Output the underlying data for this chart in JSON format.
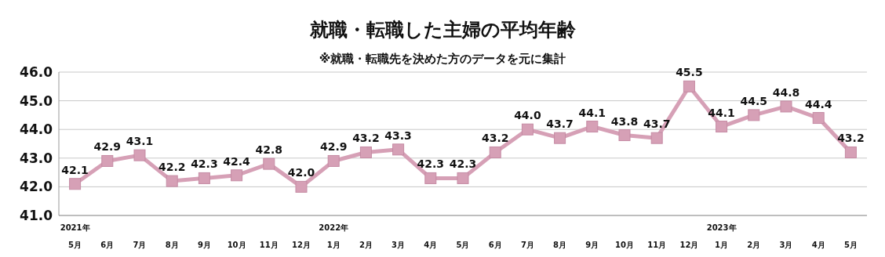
{
  "chart_data": {
    "type": "line",
    "title": "就職・転職した主婦の平均年齢",
    "subtitle": "※就職・転職先を決めた方のデータを元に集計",
    "categories": [
      "2021年\n5月",
      "6月",
      "7月",
      "8月",
      "9月",
      "10月",
      "11月",
      "12月",
      "2022年\n1月",
      "2月",
      "3月",
      "4月",
      "5月",
      "6月",
      "7月",
      "8月",
      "9月",
      "10月",
      "11月",
      "12月",
      "2023年\n1月",
      "2月",
      "3月",
      "4月",
      "5月"
    ],
    "series": [
      {
        "color": "#d6a0b6",
        "values": [
          42.1,
          42.9,
          43.1,
          42.2,
          42.3,
          42.4,
          42.8,
          42.0,
          42.9,
          43.2,
          43.3,
          42.3,
          42.3,
          43.2,
          44.0,
          43.7,
          44.1,
          43.8,
          43.7,
          45.5,
          44.1,
          44.5,
          44.8,
          44.4,
          43.2
        ],
        "value_labels": [
          "42.1",
          "42.9",
          "43.1",
          "42.2",
          "42.3",
          "42.4",
          "42.8",
          "42.0",
          "42.9",
          "43.2",
          "43.3",
          "42.3",
          "42.3",
          "43.2",
          "44.0",
          "43.7",
          "44.1",
          "43.8",
          "43.7",
          "45.5",
          "44.1",
          "44.5",
          "44.8",
          "44.4",
          "43.2"
        ]
      }
    ],
    "ylim": [
      41,
      46
    ],
    "yticks": [
      {
        "value": 41,
        "label": "41.0"
      },
      {
        "value": 42,
        "label": "42.0"
      },
      {
        "value": 43,
        "label": "43.0"
      },
      {
        "value": 44,
        "label": "44.0"
      },
      {
        "value": 45,
        "label": "45.0"
      },
      {
        "value": 46,
        "label": "46.0"
      }
    ],
    "grid": "y",
    "marker": "square",
    "line_style": "solid"
  }
}
